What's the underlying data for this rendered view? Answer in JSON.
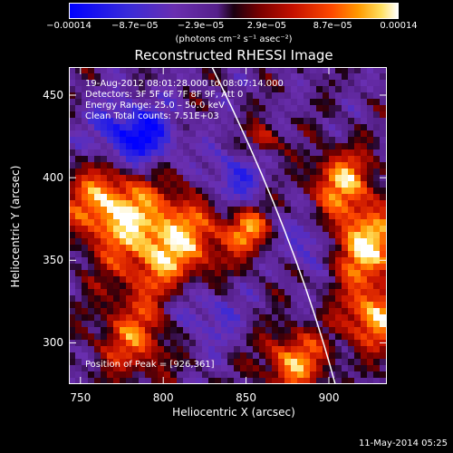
{
  "colorbar": {
    "ticks": [
      "−0.00014",
      "−8.7e−05",
      "−2.9e−05",
      "2.9e−05",
      "8.7e−05",
      "0.00014"
    ],
    "tick_fracs": [
      0.0,
      0.2,
      0.4,
      0.6,
      0.8,
      1.0
    ],
    "units": "(photons cm⁻² s⁻¹ asec⁻²)"
  },
  "title": "Reconstructed RHESSI Image",
  "annotations": [
    "19‑Aug‑2012 08:01:28.000 to 08:07:14.000",
    "Detectors: 3F 5F 6F 7F 8F 9F, Att 0",
    "Energy Range: 25.0 – 50.0 keV",
    "Clean     Total counts: 7.51E+03"
  ],
  "peak_text": "Position of Peak = [926,361]",
  "axes": {
    "xlabel": "Heliocentric X (arcsec)",
    "ylabel": "Heliocentric Y (arcsec)",
    "xlim": [
      743,
      935
    ],
    "ylim": [
      275,
      467
    ],
    "xticks": [
      750,
      800,
      850,
      900
    ],
    "yticks": [
      300,
      350,
      400,
      450
    ]
  },
  "timestamp": "11‑May‑2014 05:25",
  "colors": {
    "limb": "#ffffff",
    "frame": "#ffffff"
  }
}
